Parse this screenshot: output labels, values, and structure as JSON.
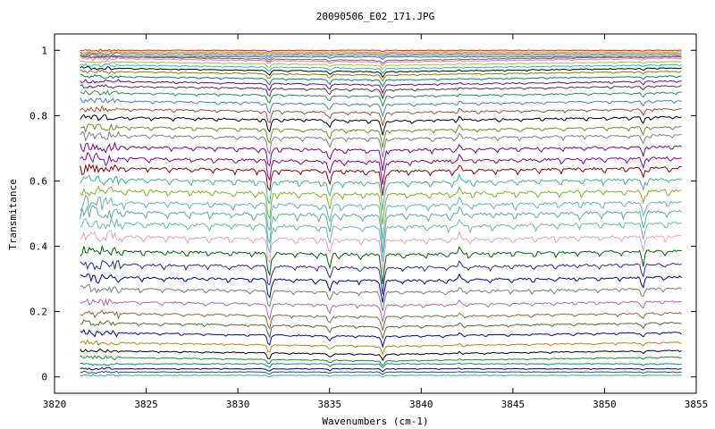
{
  "chart_data": {
    "type": "line",
    "title": "20090506_E02_171.JPG",
    "xlabel": "Wavenumbers (cm-1)",
    "ylabel": "Transmitance",
    "xlim": [
      3820,
      3855
    ],
    "ylim": [
      -0.05,
      1.05
    ],
    "x_ticks": [
      3820,
      3825,
      3830,
      3835,
      3840,
      3845,
      3850,
      3855
    ],
    "x_tick_labels": [
      "3820",
      "3825",
      "3830",
      "3835",
      "3840",
      "3845",
      "3850",
      "3855"
    ],
    "y_ticks": [
      0,
      0.2,
      0.4,
      0.6,
      0.8,
      1
    ],
    "y_tick_labels": [
      "0",
      "0.2",
      "0.4",
      "0.6",
      "0.8",
      "1"
    ],
    "grid": false,
    "legend": "none",
    "x_range_of_data": [
      3821.4,
      3854.2
    ],
    "absorption_lines_cm1": [
      3831.7,
      3835.0,
      3837.9,
      3842.1,
      3852.1
    ],
    "series_baseline_levels": [
      1.0,
      0.995,
      0.99,
      0.985,
      0.98,
      0.975,
      0.97,
      0.96,
      0.95,
      0.94,
      0.93,
      0.915,
      0.9,
      0.885,
      0.865,
      0.84,
      0.815,
      0.79,
      0.76,
      0.735,
      0.7,
      0.665,
      0.635,
      0.6,
      0.565,
      0.53,
      0.5,
      0.465,
      0.425,
      0.38,
      0.34,
      0.3,
      0.265,
      0.225,
      0.19,
      0.16,
      0.13,
      0.1,
      0.075,
      0.055,
      0.04,
      0.025,
      0.015,
      0.005
    ],
    "series_colors": [
      "#d62728",
      "#ff7f0e",
      "#2ca02c",
      "#9467bd",
      "#1f77b4",
      "#8c564b",
      "#e377c2",
      "#bcbd22",
      "#17becf",
      "#000000",
      "#808000",
      "#008080",
      "#800080",
      "#404040",
      "#2e8b57",
      "#4682b4",
      "#a0522d",
      "#000000",
      "#6b8e23",
      "#808080",
      "#800080",
      "#8b008b",
      "#8b0000",
      "#3cb3a0",
      "#7cb518",
      "#66b2b2",
      "#5faa9a",
      "#6ab4c4",
      "#e8a0b8",
      "#006400",
      "#2a2a9a",
      "#0000aa",
      "#7a7a7a",
      "#b06aa0",
      "#8c6a3a",
      "#556b2f",
      "#0000cd",
      "#b8860b",
      "#000000",
      "#228b22",
      "#008b8b",
      "#00008b",
      "#2f4f4f",
      "#20b2aa"
    ]
  }
}
